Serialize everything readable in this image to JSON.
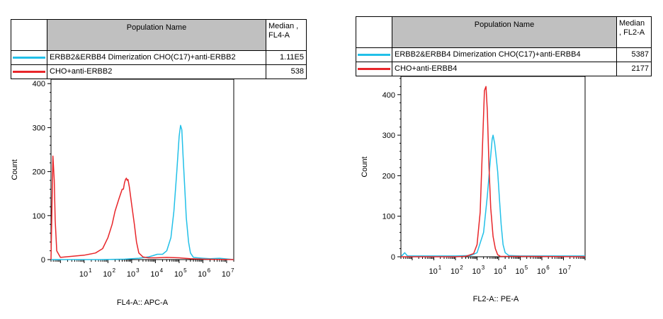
{
  "charts": [
    {
      "legend": {
        "header_name": "Population Name",
        "header_median": "Median , FL4-A",
        "rows": [
          {
            "name": "ERBB2&ERBB4 Dimerization CHO(C17)+anti-ERBB2",
            "median": "1.11E5",
            "color": "#22c0e8"
          },
          {
            "name": "CHO+anti-ERBB2",
            "median": "538",
            "color": "#e8262a"
          }
        ]
      },
      "xlabel": "FL4-A:: APC-A",
      "ylabel": "Count"
    },
    {
      "legend": {
        "header_name": "Population Name",
        "header_median": "Median , FL2-A",
        "rows": [
          {
            "name": "ERBB2&ERBB4 Dimerization CHO(C17)+anti-ERBB4",
            "median": "5387",
            "color": "#22c0e8"
          },
          {
            "name": "CHO+anti-ERBB4",
            "median": "2177",
            "color": "#e8262a"
          }
        ]
      },
      "xlabel": "FL2-A:: PE-A",
      "ylabel": "Count"
    }
  ],
  "chart_data": [
    {
      "type": "line",
      "xlabel": "FL4-A:: APC-A",
      "ylabel": "Count",
      "x_scale": "log",
      "xlim": [
        0.4,
        20000000
      ],
      "ylim": [
        0,
        410
      ],
      "y_ticks": [
        0,
        100,
        200,
        300,
        400
      ],
      "x_ticks": [
        {
          "base": "10",
          "exp": "1",
          "value": 10
        },
        {
          "base": "10",
          "exp": "2",
          "value": 100
        },
        {
          "base": "10",
          "exp": "3",
          "value": 1000
        },
        {
          "base": "10",
          "exp": "4",
          "value": 10000
        },
        {
          "base": "10",
          "exp": "5",
          "value": 100000
        },
        {
          "base": "10",
          "exp": "6",
          "value": 1000000
        },
        {
          "base": "10",
          "exp": "7",
          "value": 10000000
        }
      ],
      "series": [
        {
          "name": "ERBB2&ERBB4 Dimerization CHO(C17)+anti-ERBB2",
          "color": "#22c0e8",
          "x": [
            0.4,
            5,
            50,
            500,
            2000,
            5000,
            8000,
            12000,
            20000,
            30000,
            45000,
            60000,
            80000,
            100000,
            115000,
            130000,
            145000,
            170000,
            200000,
            250000,
            300000,
            400000,
            600000,
            1000000,
            2000000,
            5000000,
            20000000
          ],
          "y": [
            0,
            0,
            0,
            1,
            3,
            6,
            9,
            12,
            12,
            20,
            50,
            110,
            200,
            280,
            305,
            295,
            240,
            170,
            95,
            40,
            15,
            5,
            4,
            3,
            2,
            3,
            0
          ]
        },
        {
          "name": "CHO+anti-ERBB2",
          "color": "#e8262a",
          "x": [
            0.4,
            0.48,
            0.55,
            0.6,
            0.7,
            1,
            10,
            30,
            60,
            100,
            150,
            200,
            300,
            400,
            450,
            500,
            550,
            600,
            650,
            700,
            800,
            1000,
            1300,
            1600,
            2000,
            3000,
            5000,
            10000,
            30000,
            100000,
            300000,
            1000000,
            20000000
          ],
          "y": [
            0,
            235,
            180,
            90,
            20,
            5,
            10,
            15,
            25,
            50,
            80,
            110,
            140,
            160,
            160,
            175,
            182,
            185,
            180,
            182,
            165,
            125,
            80,
            40,
            15,
            6,
            4,
            4,
            5,
            4,
            2,
            1,
            0
          ]
        }
      ]
    },
    {
      "type": "line",
      "xlabel": "FL2-A:: PE-A",
      "ylabel": "Count",
      "x_scale": "log",
      "xlim": [
        0.3,
        100000000
      ],
      "ylim": [
        0,
        445
      ],
      "y_ticks": [
        0,
        100,
        200,
        300,
        400
      ],
      "x_ticks": [
        {
          "base": "10",
          "exp": "1",
          "value": 10
        },
        {
          "base": "10",
          "exp": "2",
          "value": 100
        },
        {
          "base": "10",
          "exp": "3",
          "value": 1000
        },
        {
          "base": "10",
          "exp": "4",
          "value": 10000
        },
        {
          "base": "10",
          "exp": "5",
          "value": 100000
        },
        {
          "base": "10",
          "exp": "6",
          "value": 1000000
        },
        {
          "base": "10",
          "exp": "7",
          "value": 10000000
        }
      ],
      "series": [
        {
          "name": "ERBB2&ERBB4 Dimerization CHO(C17)+anti-ERBB4",
          "color": "#22c0e8",
          "x": [
            0.3,
            0.45,
            0.6,
            1,
            10,
            100,
            500,
            1000,
            2000,
            3000,
            4000,
            5000,
            5500,
            6500,
            7500,
            9000,
            11000,
            13000,
            16000,
            20000,
            30000,
            100000,
            100000000
          ],
          "y": [
            0,
            10,
            2,
            2,
            2,
            2,
            3,
            10,
            60,
            150,
            230,
            290,
            300,
            280,
            250,
            210,
            140,
            80,
            30,
            10,
            3,
            2,
            2
          ]
        },
        {
          "name": "CHO+anti-ERBB4",
          "color": "#e8262a",
          "x": [
            0.3,
            10,
            100,
            300,
            700,
            1000,
            1400,
            1800,
            2200,
            2600,
            3000,
            3600,
            4300,
            5500,
            7000,
            9000,
            12000,
            100000000
          ],
          "y": [
            0,
            0,
            0,
            1,
            8,
            30,
            110,
            280,
            410,
            420,
            360,
            220,
            120,
            50,
            20,
            5,
            1,
            0
          ]
        }
      ]
    }
  ]
}
